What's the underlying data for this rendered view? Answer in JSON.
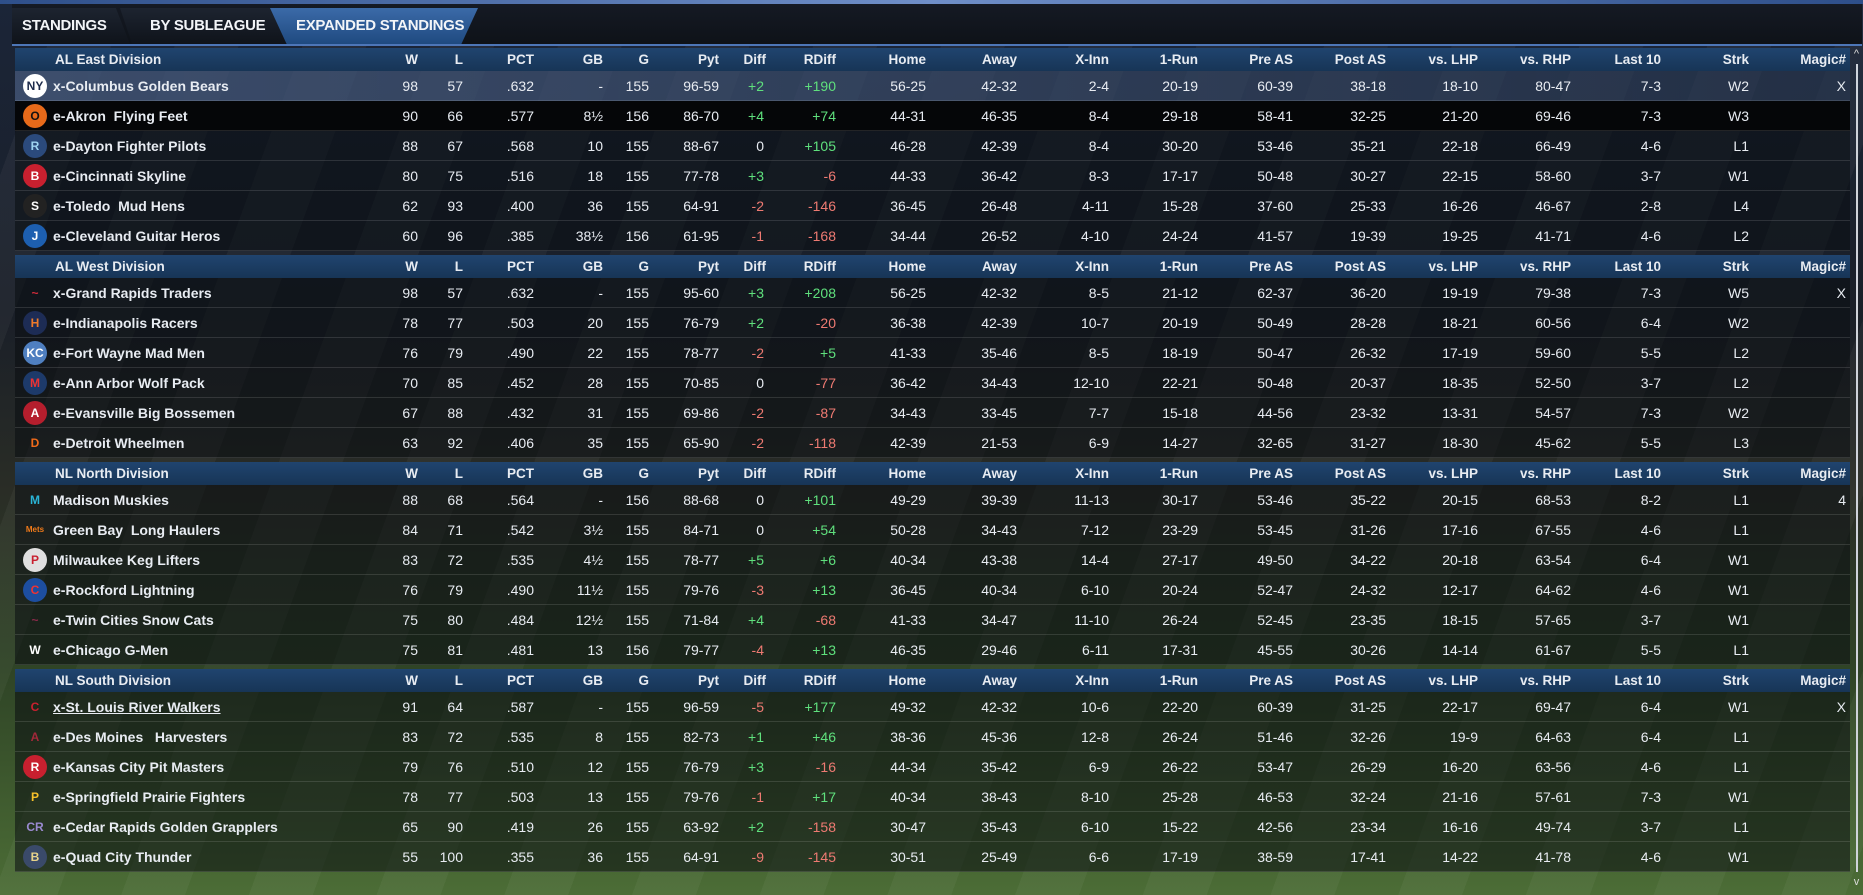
{
  "tabs": [
    "STANDINGS",
    "BY SUBLEAGUE",
    "EXPANDED STANDINGS"
  ],
  "columns": [
    "W",
    "L",
    "PCT",
    "GB",
    "G",
    "Pyt",
    "Diff",
    "RDiff",
    "Home",
    "Away",
    "X-Inn",
    "1-Run",
    "Pre AS",
    "Post AS",
    "vs. LHP",
    "vs. RHP",
    "Last 10",
    "Strk",
    "Magic#"
  ],
  "colors": {
    "positive": "#5fe07d",
    "negative": "#ee7a72",
    "header": "#1c3f66",
    "active_tab": "#2f5d98"
  },
  "divisions": [
    {
      "name": "AL East Division",
      "teams": [
        {
          "name": "x-Columbus Golden Bears",
          "logo": {
            "icon": "yankees-logo-icon",
            "color": "#ffffff",
            "fg": "#1c2a4a",
            "glyph": "NY"
          },
          "stats": [
            "98",
            "57",
            ".632",
            "-",
            "155",
            "96-59",
            "+2",
            "+190",
            "56-25",
            "42-32",
            "2-4",
            "20-19",
            "60-39",
            "38-18",
            "18-10",
            "80-47",
            "7-3",
            "W2",
            "X"
          ]
        },
        {
          "name": "e-Akron  Flying Feet",
          "logo": {
            "icon": "orioles-logo-icon",
            "color": "#e86a1a",
            "fg": "#111",
            "glyph": "O"
          },
          "stats": [
            "90",
            "66",
            ".577",
            "8½",
            "156",
            "86-70",
            "+4",
            "+74",
            "44-31",
            "46-35",
            "8-4",
            "29-18",
            "58-41",
            "32-25",
            "21-20",
            "69-46",
            "7-3",
            "W3",
            ""
          ]
        },
        {
          "name": "e-Dayton Fighter Pilots",
          "logo": {
            "icon": "rays-logo-icon",
            "color": "#2b4a7c",
            "fg": "#9fd3f0",
            "glyph": "R"
          },
          "stats": [
            "88",
            "67",
            ".568",
            "10",
            "155",
            "88-67",
            "0",
            "+105",
            "46-28",
            "42-39",
            "8-4",
            "30-20",
            "53-46",
            "35-21",
            "22-18",
            "66-49",
            "4-6",
            "L1",
            ""
          ]
        },
        {
          "name": "e-Cincinnati Skyline",
          "logo": {
            "icon": "red-sox-logo-icon",
            "color": "#c8202f",
            "fg": "#fff",
            "glyph": "B"
          },
          "stats": [
            "80",
            "75",
            ".516",
            "18",
            "155",
            "77-78",
            "+3",
            "-6",
            "44-33",
            "36-42",
            "8-3",
            "17-17",
            "50-48",
            "30-27",
            "22-15",
            "58-60",
            "3-7",
            "W1",
            ""
          ]
        },
        {
          "name": "e-Toledo  Mud Hens",
          "logo": {
            "icon": "white-sox-logo-icon",
            "color": "#222",
            "fg": "#fff",
            "glyph": "S"
          },
          "stats": [
            "62",
            "93",
            ".400",
            "36",
            "155",
            "64-91",
            "-2",
            "-146",
            "36-45",
            "26-48",
            "4-11",
            "15-28",
            "37-60",
            "25-33",
            "16-26",
            "46-67",
            "2-8",
            "L4",
            ""
          ]
        },
        {
          "name": "e-Cleveland Guitar Heros",
          "logo": {
            "icon": "blue-jays-logo-icon",
            "color": "#1d5fb0",
            "fg": "#fff",
            "glyph": "J"
          },
          "stats": [
            "60",
            "96",
            ".385",
            "38½",
            "156",
            "61-95",
            "-1",
            "-168",
            "34-44",
            "26-52",
            "4-10",
            "24-24",
            "41-57",
            "19-39",
            "19-25",
            "41-71",
            "4-6",
            "L2",
            ""
          ]
        }
      ]
    },
    {
      "name": "AL West Division",
      "teams": [
        {
          "name": "x-Grand Rapids Traders",
          "logo": {
            "icon": "indians-logo-icon",
            "color": "transparent",
            "fg": "#d22b3a",
            "glyph": "~"
          },
          "stats": [
            "98",
            "57",
            ".632",
            "-",
            "155",
            "95-60",
            "+3",
            "+208",
            "56-25",
            "42-32",
            "8-5",
            "21-12",
            "62-37",
            "36-20",
            "19-19",
            "79-38",
            "7-3",
            "W5",
            "X"
          ]
        },
        {
          "name": "e-Indianapolis Racers",
          "logo": {
            "icon": "astros-logo-icon",
            "color": "#1d2c55",
            "fg": "#f07a2a",
            "glyph": "H"
          },
          "stats": [
            "78",
            "77",
            ".503",
            "20",
            "155",
            "76-79",
            "+2",
            "-20",
            "36-38",
            "42-39",
            "10-7",
            "20-19",
            "50-49",
            "28-28",
            "18-21",
            "60-56",
            "6-4",
            "W2",
            ""
          ]
        },
        {
          "name": "e-Fort Wayne Mad Men",
          "logo": {
            "icon": "royals-logo-icon",
            "color": "#4f7fc0",
            "fg": "#fff",
            "glyph": "KC"
          },
          "stats": [
            "76",
            "79",
            ".490",
            "22",
            "155",
            "78-77",
            "-2",
            "+5",
            "41-33",
            "35-46",
            "8-5",
            "18-19",
            "50-47",
            "26-32",
            "17-19",
            "59-60",
            "5-5",
            "L2",
            ""
          ]
        },
        {
          "name": "e-Ann Arbor Wolf Pack",
          "logo": {
            "icon": "twins-logo-icon",
            "color": "#1d3a6a",
            "fg": "#e33",
            "glyph": "M"
          },
          "stats": [
            "70",
            "85",
            ".452",
            "28",
            "155",
            "70-85",
            "0",
            "-77",
            "36-42",
            "34-43",
            "12-10",
            "22-21",
            "50-48",
            "20-37",
            "18-35",
            "52-50",
            "3-7",
            "L2",
            ""
          ]
        },
        {
          "name": "e-Evansville Big Bossemen",
          "logo": {
            "icon": "angels-logo-icon",
            "color": "#b51e2d",
            "fg": "#fff",
            "glyph": "A"
          },
          "stats": [
            "67",
            "88",
            ".432",
            "31",
            "155",
            "69-86",
            "-2",
            "-87",
            "34-43",
            "33-45",
            "7-7",
            "15-18",
            "44-56",
            "23-32",
            "13-31",
            "54-57",
            "7-3",
            "W2",
            ""
          ]
        },
        {
          "name": "e-Detroit Wheelmen",
          "logo": {
            "icon": "tigers-logo-icon",
            "color": "transparent",
            "fg": "#f06a1a",
            "glyph": "D"
          },
          "stats": [
            "63",
            "92",
            ".406",
            "35",
            "155",
            "65-90",
            "-2",
            "-118",
            "42-39",
            "21-53",
            "6-9",
            "14-27",
            "32-65",
            "31-27",
            "18-30",
            "45-62",
            "5-5",
            "L3",
            ""
          ]
        }
      ]
    },
    {
      "name": "NL North Division",
      "teams": [
        {
          "name": "Madison Muskies",
          "logo": {
            "icon": "marlins-logo-icon",
            "color": "transparent",
            "fg": "#2ab5d8",
            "glyph": "M"
          },
          "stats": [
            "88",
            "68",
            ".564",
            "-",
            "156",
            "88-68",
            "0",
            "+101",
            "49-29",
            "39-39",
            "11-13",
            "30-17",
            "53-46",
            "35-22",
            "20-15",
            "68-53",
            "8-2",
            "L1",
            "4"
          ]
        },
        {
          "name": "Green Bay  Long Haulers",
          "logo": {
            "icon": "mets-logo-icon",
            "color": "transparent",
            "fg": "#f07a1a",
            "glyph": "Mets"
          },
          "stats": [
            "84",
            "71",
            ".542",
            "3½",
            "155",
            "84-71",
            "0",
            "+54",
            "50-28",
            "34-43",
            "7-12",
            "23-29",
            "53-45",
            "31-26",
            "17-16",
            "67-55",
            "4-6",
            "L1",
            ""
          ]
        },
        {
          "name": "Milwaukee Keg Lifters",
          "logo": {
            "icon": "phillies-logo-icon",
            "color": "#e0e0e0",
            "fg": "#c8202f",
            "glyph": "P"
          },
          "stats": [
            "83",
            "72",
            ".535",
            "4½",
            "155",
            "78-77",
            "+5",
            "+6",
            "40-34",
            "43-38",
            "14-4",
            "27-17",
            "49-50",
            "34-22",
            "20-18",
            "63-54",
            "6-4",
            "W1",
            ""
          ]
        },
        {
          "name": "e-Rockford Lightning",
          "logo": {
            "icon": "cubs-logo-icon",
            "color": "#1d4ea0",
            "fg": "#e33",
            "glyph": "C"
          },
          "stats": [
            "76",
            "79",
            ".490",
            "11½",
            "155",
            "79-76",
            "-3",
            "+13",
            "36-45",
            "40-34",
            "6-10",
            "20-24",
            "52-47",
            "24-32",
            "12-17",
            "64-62",
            "4-6",
            "W1",
            ""
          ]
        },
        {
          "name": "e-Twin Cities Snow Cats",
          "logo": {
            "icon": "braves-logo-icon",
            "color": "transparent",
            "fg": "#8a2a4a",
            "glyph": "~"
          },
          "stats": [
            "75",
            "80",
            ".484",
            "12½",
            "155",
            "71-84",
            "+4",
            "-68",
            "41-33",
            "34-47",
            "11-10",
            "26-24",
            "52-45",
            "23-35",
            "18-15",
            "57-65",
            "3-7",
            "W1",
            ""
          ]
        },
        {
          "name": "e-Chicago G-Men",
          "logo": {
            "icon": "nationals-logo-icon",
            "color": "transparent",
            "fg": "#fff",
            "glyph": "W"
          },
          "stats": [
            "75",
            "81",
            ".481",
            "13",
            "156",
            "79-77",
            "-4",
            "+13",
            "46-35",
            "29-46",
            "6-11",
            "17-31",
            "45-55",
            "30-26",
            "14-14",
            "61-67",
            "5-5",
            "L1",
            ""
          ]
        }
      ]
    },
    {
      "name": "NL South Division",
      "teams": [
        {
          "name": "x-St. Louis River Walkers",
          "logo": {
            "icon": "cardinals-logo-icon",
            "color": "transparent",
            "fg": "#c8202f",
            "glyph": "C"
          },
          "stats": [
            "91",
            "64",
            ".587",
            "-",
            "155",
            "96-59",
            "-5",
            "+177",
            "49-32",
            "42-32",
            "10-6",
            "22-20",
            "60-39",
            "31-25",
            "22-17",
            "69-47",
            "6-4",
            "W1",
            "X"
          ]
        },
        {
          "name": "e-Des Moines   Harvesters",
          "logo": {
            "icon": "diamondbacks-logo-icon",
            "color": "transparent",
            "fg": "#a3283a",
            "glyph": "A"
          },
          "stats": [
            "83",
            "72",
            ".535",
            "8",
            "155",
            "82-73",
            "+1",
            "+46",
            "38-36",
            "45-36",
            "12-8",
            "26-24",
            "51-46",
            "32-26",
            "19-9",
            "64-63",
            "6-4",
            "L1",
            ""
          ]
        },
        {
          "name": "e-Kansas City Pit Masters",
          "logo": {
            "icon": "reds-logo-icon",
            "color": "#c8202f",
            "fg": "#fff",
            "glyph": "R"
          },
          "stats": [
            "79",
            "76",
            ".510",
            "12",
            "155",
            "76-79",
            "+3",
            "-16",
            "44-34",
            "35-42",
            "6-9",
            "26-22",
            "53-47",
            "26-29",
            "16-20",
            "63-56",
            "4-6",
            "L1",
            ""
          ]
        },
        {
          "name": "e-Springfield Prairie Fighters",
          "logo": {
            "icon": "pirates-logo-icon",
            "color": "transparent",
            "fg": "#f5c02a",
            "glyph": "P"
          },
          "stats": [
            "78",
            "77",
            ".503",
            "13",
            "155",
            "79-76",
            "-1",
            "+17",
            "40-34",
            "38-43",
            "8-10",
            "25-28",
            "46-53",
            "32-24",
            "21-16",
            "57-61",
            "7-3",
            "W1",
            ""
          ]
        },
        {
          "name": "e-Cedar Rapids Golden Grapplers",
          "logo": {
            "icon": "rockies-logo-icon",
            "color": "transparent",
            "fg": "#9a8ad0",
            "glyph": "CR"
          },
          "stats": [
            "65",
            "90",
            ".419",
            "26",
            "155",
            "63-92",
            "+2",
            "-158",
            "30-47",
            "35-43",
            "6-10",
            "15-22",
            "42-56",
            "23-34",
            "16-16",
            "49-74",
            "3-7",
            "L1",
            ""
          ]
        },
        {
          "name": "e-Quad City Thunder",
          "logo": {
            "icon": "brewers-logo-icon",
            "color": "#3a4a6a",
            "fg": "#e8d38a",
            "glyph": "B"
          },
          "stats": [
            "55",
            "100",
            ".355",
            "36",
            "155",
            "64-91",
            "-9",
            "-145",
            "30-51",
            "25-49",
            "6-6",
            "17-19",
            "38-59",
            "17-41",
            "14-22",
            "41-78",
            "4-6",
            "W1",
            ""
          ]
        }
      ]
    }
  ],
  "scrollbar": {
    "up": "^",
    "down": "v"
  }
}
